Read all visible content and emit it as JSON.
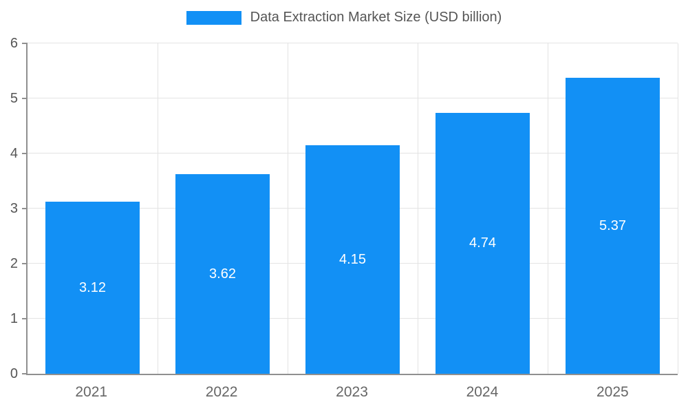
{
  "chart_data": {
    "type": "bar",
    "title": "Data Extraction Market Size (USD billion)",
    "categories": [
      "2021",
      "2022",
      "2023",
      "2024",
      "2025"
    ],
    "values": [
      3.12,
      3.62,
      4.15,
      4.74,
      5.37
    ],
    "value_labels": [
      "3.12",
      "3.62",
      "4.15",
      "4.74",
      "5.37"
    ],
    "xlabel": "",
    "ylabel": "",
    "ylim": [
      0,
      6
    ],
    "yticks": [
      0,
      1,
      2,
      3,
      4,
      5,
      6
    ],
    "grid": true,
    "legend_position": "top",
    "bar_color": "#1290F5",
    "bar_width_fraction": 0.73
  },
  "colors": {
    "bar": "#1290F5",
    "grid": "#E3E3E3",
    "axis": "#8F8F8F",
    "tick_text": "#555555",
    "x_label_text": "#666666",
    "value_label_text": "#FFFFFF",
    "legend_text": "#555555",
    "background": "#FFFFFF"
  }
}
